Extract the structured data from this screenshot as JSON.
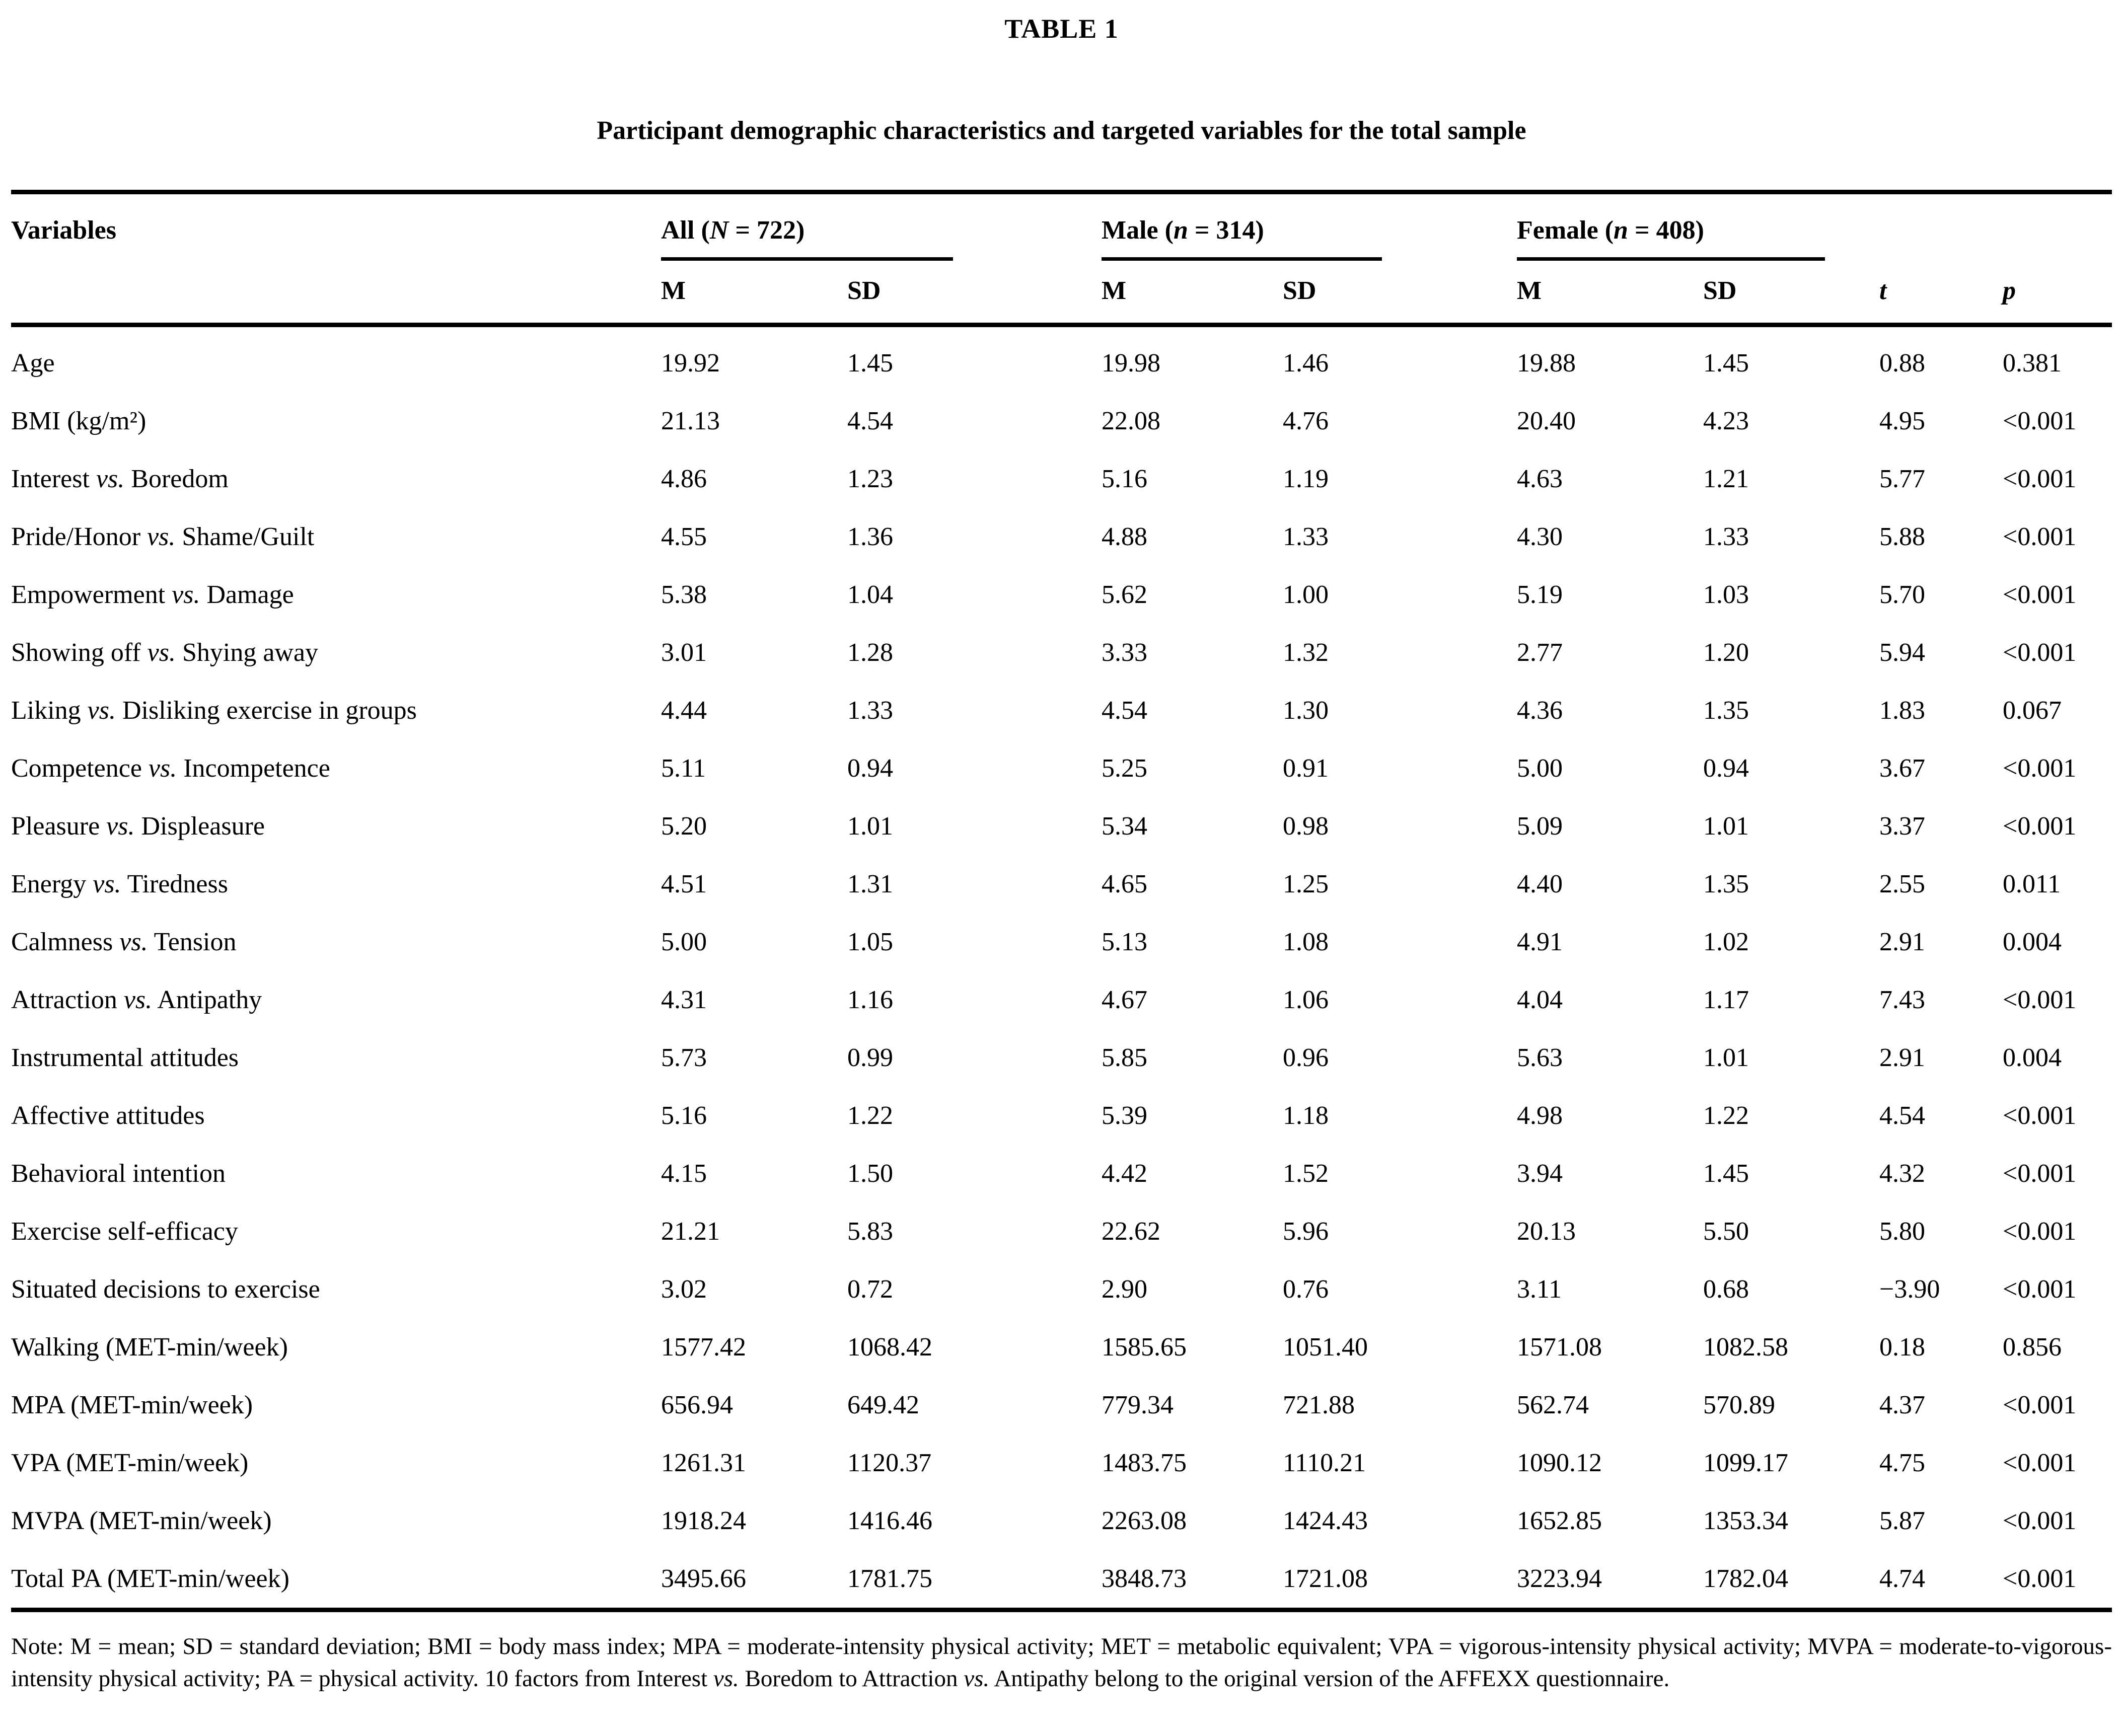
{
  "title": "TABLE 1",
  "subtitle": "Participant demographic characteristics and targeted variables for the total sample",
  "table": {
    "var_header": "Variables",
    "groups": {
      "all": {
        "part1": "All (",
        "italic": "N",
        "part2": " = 722)"
      },
      "male": {
        "part1": "Male (",
        "italic": "n",
        "part2": " = 314)"
      },
      "female": {
        "part1": "Female (",
        "italic": "n",
        "part2": " = 408)"
      }
    },
    "columns": {
      "m": "M",
      "sd": "SD",
      "t": "t",
      "p": "p"
    },
    "rows": [
      {
        "label_pre": "Age",
        "label_vs": "",
        "label_post": "",
        "values": [
          "19.92",
          "1.45",
          "19.98",
          "1.46",
          "19.88",
          "1.45",
          "0.88",
          "0.381"
        ]
      },
      {
        "label_pre": "BMI (kg/m²)",
        "label_vs": "",
        "label_post": "",
        "values": [
          "21.13",
          "4.54",
          "22.08",
          "4.76",
          "20.40",
          "4.23",
          "4.95",
          "<0.001"
        ]
      },
      {
        "label_pre": "Interest ",
        "label_vs": "vs.",
        "label_post": " Boredom",
        "values": [
          "4.86",
          "1.23",
          "5.16",
          "1.19",
          "4.63",
          "1.21",
          "5.77",
          "<0.001"
        ]
      },
      {
        "label_pre": "Pride/Honor ",
        "label_vs": "vs.",
        "label_post": " Shame/Guilt",
        "values": [
          "4.55",
          "1.36",
          "4.88",
          "1.33",
          "4.30",
          "1.33",
          "5.88",
          "<0.001"
        ]
      },
      {
        "label_pre": "Empowerment ",
        "label_vs": "vs.",
        "label_post": " Damage",
        "values": [
          "5.38",
          "1.04",
          "5.62",
          "1.00",
          "5.19",
          "1.03",
          "5.70",
          "<0.001"
        ]
      },
      {
        "label_pre": "Showing off ",
        "label_vs": "vs.",
        "label_post": " Shying away",
        "values": [
          "3.01",
          "1.28",
          "3.33",
          "1.32",
          "2.77",
          "1.20",
          "5.94",
          "<0.001"
        ]
      },
      {
        "label_pre": "Liking ",
        "label_vs": "vs.",
        "label_post": " Disliking exercise in groups",
        "values": [
          "4.44",
          "1.33",
          "4.54",
          "1.30",
          "4.36",
          "1.35",
          "1.83",
          "0.067"
        ]
      },
      {
        "label_pre": "Competence ",
        "label_vs": "vs.",
        "label_post": " Incompetence",
        "values": [
          "5.11",
          "0.94",
          "5.25",
          "0.91",
          "5.00",
          "0.94",
          "3.67",
          "<0.001"
        ]
      },
      {
        "label_pre": "Pleasure ",
        "label_vs": "vs.",
        "label_post": " Displeasure",
        "values": [
          "5.20",
          "1.01",
          "5.34",
          "0.98",
          "5.09",
          "1.01",
          "3.37",
          "<0.001"
        ]
      },
      {
        "label_pre": "Energy ",
        "label_vs": "vs.",
        "label_post": " Tiredness",
        "values": [
          "4.51",
          "1.31",
          "4.65",
          "1.25",
          "4.40",
          "1.35",
          "2.55",
          "0.011"
        ]
      },
      {
        "label_pre": "Calmness ",
        "label_vs": "vs.",
        "label_post": " Tension",
        "values": [
          "5.00",
          "1.05",
          "5.13",
          "1.08",
          "4.91",
          "1.02",
          "2.91",
          "0.004"
        ]
      },
      {
        "label_pre": "Attraction ",
        "label_vs": "vs.",
        "label_post": " Antipathy",
        "values": [
          "4.31",
          "1.16",
          "4.67",
          "1.06",
          "4.04",
          "1.17",
          "7.43",
          "<0.001"
        ]
      },
      {
        "label_pre": "Instrumental attitudes",
        "label_vs": "",
        "label_post": "",
        "values": [
          "5.73",
          "0.99",
          "5.85",
          "0.96",
          "5.63",
          "1.01",
          "2.91",
          "0.004"
        ]
      },
      {
        "label_pre": "Affective attitudes",
        "label_vs": "",
        "label_post": "",
        "values": [
          "5.16",
          "1.22",
          "5.39",
          "1.18",
          "4.98",
          "1.22",
          "4.54",
          "<0.001"
        ]
      },
      {
        "label_pre": "Behavioral intention",
        "label_vs": "",
        "label_post": "",
        "values": [
          "4.15",
          "1.50",
          "4.42",
          "1.52",
          "3.94",
          "1.45",
          "4.32",
          "<0.001"
        ]
      },
      {
        "label_pre": "Exercise self-efficacy",
        "label_vs": "",
        "label_post": "",
        "values": [
          "21.21",
          "5.83",
          "22.62",
          "5.96",
          "20.13",
          "5.50",
          "5.80",
          "<0.001"
        ]
      },
      {
        "label_pre": "Situated decisions to exercise",
        "label_vs": "",
        "label_post": "",
        "values": [
          "3.02",
          "0.72",
          "2.90",
          "0.76",
          "3.11",
          "0.68",
          "−3.90",
          "<0.001"
        ]
      },
      {
        "label_pre": "Walking (MET-min/week)",
        "label_vs": "",
        "label_post": "",
        "values": [
          "1577.42",
          "1068.42",
          "1585.65",
          "1051.40",
          "1571.08",
          "1082.58",
          "0.18",
          "0.856"
        ]
      },
      {
        "label_pre": "MPA (MET-min/week)",
        "label_vs": "",
        "label_post": "",
        "values": [
          "656.94",
          "649.42",
          "779.34",
          "721.88",
          "562.74",
          "570.89",
          "4.37",
          "<0.001"
        ]
      },
      {
        "label_pre": "VPA (MET-min/week)",
        "label_vs": "",
        "label_post": "",
        "values": [
          "1261.31",
          "1120.37",
          "1483.75",
          "1110.21",
          "1090.12",
          "1099.17",
          "4.75",
          "<0.001"
        ]
      },
      {
        "label_pre": "MVPA (MET-min/week)",
        "label_vs": "",
        "label_post": "",
        "values": [
          "1918.24",
          "1416.46",
          "2263.08",
          "1424.43",
          "1652.85",
          "1353.34",
          "5.87",
          "<0.001"
        ]
      },
      {
        "label_pre": "Total PA (MET-min/week)",
        "label_vs": "",
        "label_post": "",
        "values": [
          "3495.66",
          "1781.75",
          "3848.73",
          "1721.08",
          "3223.94",
          "1782.04",
          "4.74",
          "<0.001"
        ]
      }
    ]
  },
  "note": {
    "p1": "Note: M = mean; SD = standard deviation; BMI = body mass index; MPA = moderate-intensity physical activity; MET = metabolic equivalent; VPA = vigorous-intensity physical activity; MVPA = moderate-to-vigorous-intensity physical activity; PA = physical activity. 10 factors from Interest ",
    "vs1": "vs.",
    "p2": " Boredom to Attraction ",
    "vs2": "vs.",
    "p3": " Antipathy belong to the original version of the AFFEXX questionnaire."
  }
}
